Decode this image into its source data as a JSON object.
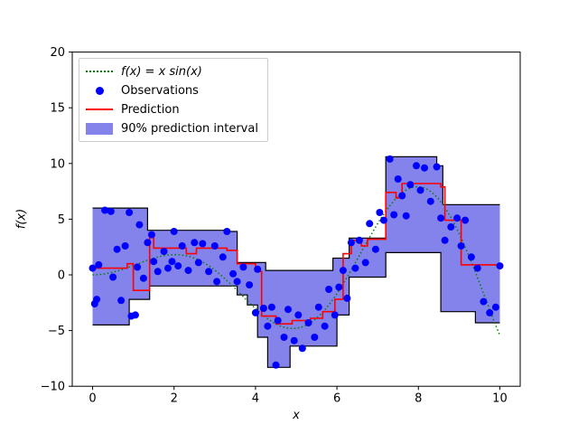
{
  "figure": {
    "background": "#ffffff"
  },
  "legend": {
    "items": [
      {
        "label": "f(x) = x sin(x)",
        "type": "dotted-line",
        "color": "#008000"
      },
      {
        "label": "Observations",
        "type": "dot",
        "color": "#0000ff"
      },
      {
        "label": "Prediction",
        "type": "line",
        "color": "#ff0000"
      },
      {
        "label": "90% prediction interval",
        "type": "patch",
        "color": "#4040e0"
      }
    ]
  },
  "chart_data": {
    "type": "line",
    "title": "",
    "xlabel": "x",
    "ylabel": "f(x)",
    "xlim": [
      -0.5,
      10.5
    ],
    "ylim": [
      -10,
      20
    ],
    "xticks": [
      0,
      2,
      4,
      6,
      8,
      10
    ],
    "yticks": [
      -10,
      -5,
      0,
      5,
      10,
      15,
      20
    ],
    "grid": false,
    "legend_position": "upper left",
    "true_function": {
      "label": "f(x) = x sin(x)",
      "formula": "x*sin(x)",
      "range": [
        0,
        10
      ],
      "color": "#008000",
      "style": "dotted"
    },
    "observations": {
      "label": "Observations",
      "color": "#0000ff",
      "points": [
        [
          0.0,
          0.6
        ],
        [
          0.05,
          -2.6
        ],
        [
          0.1,
          -2.2
        ],
        [
          0.15,
          0.9
        ],
        [
          0.3,
          5.8
        ],
        [
          0.45,
          5.7
        ],
        [
          0.5,
          -0.2
        ],
        [
          0.6,
          2.3
        ],
        [
          0.7,
          -2.3
        ],
        [
          0.8,
          2.6
        ],
        [
          0.9,
          5.6
        ],
        [
          0.95,
          -3.7
        ],
        [
          1.05,
          -3.6
        ],
        [
          1.1,
          0.7
        ],
        [
          1.15,
          4.5
        ],
        [
          1.25,
          -0.3
        ],
        [
          1.35,
          2.9
        ],
        [
          1.45,
          3.6
        ],
        [
          1.5,
          1.2
        ],
        [
          1.6,
          0.3
        ],
        [
          1.75,
          2.1
        ],
        [
          1.85,
          0.6
        ],
        [
          1.95,
          1.2
        ],
        [
          2.0,
          3.9
        ],
        [
          2.1,
          0.8
        ],
        [
          2.2,
          2.6
        ],
        [
          2.35,
          0.4
        ],
        [
          2.5,
          2.9
        ],
        [
          2.6,
          1.1
        ],
        [
          2.7,
          2.8
        ],
        [
          2.85,
          0.3
        ],
        [
          3.0,
          2.6
        ],
        [
          3.05,
          -0.6
        ],
        [
          3.2,
          1.6
        ],
        [
          3.3,
          3.9
        ],
        [
          3.45,
          0.1
        ],
        [
          3.55,
          -0.6
        ],
        [
          3.7,
          0.7
        ],
        [
          3.85,
          -0.9
        ],
        [
          4.0,
          -3.4
        ],
        [
          4.05,
          0.5
        ],
        [
          4.2,
          -3.0
        ],
        [
          4.3,
          -4.6
        ],
        [
          4.4,
          -2.9
        ],
        [
          4.5,
          -8.1
        ],
        [
          4.55,
          -4.1
        ],
        [
          4.7,
          -5.6
        ],
        [
          4.8,
          -3.1
        ],
        [
          4.95,
          -5.9
        ],
        [
          5.05,
          -3.6
        ],
        [
          5.15,
          -6.6
        ],
        [
          5.3,
          -4.3
        ],
        [
          5.45,
          -5.6
        ],
        [
          5.55,
          -2.9
        ],
        [
          5.7,
          -4.6
        ],
        [
          5.8,
          -1.3
        ],
        [
          5.95,
          -3.6
        ],
        [
          6.05,
          -1.1
        ],
        [
          6.15,
          0.4
        ],
        [
          6.25,
          -2.1
        ],
        [
          6.35,
          2.9
        ],
        [
          6.45,
          0.6
        ],
        [
          6.55,
          3.1
        ],
        [
          6.7,
          1.1
        ],
        [
          6.8,
          4.6
        ],
        [
          6.95,
          2.3
        ],
        [
          7.05,
          5.6
        ],
        [
          7.15,
          4.9
        ],
        [
          7.3,
          10.4
        ],
        [
          7.4,
          5.4
        ],
        [
          7.5,
          8.6
        ],
        [
          7.6,
          7.1
        ],
        [
          7.7,
          5.3
        ],
        [
          7.8,
          8.1
        ],
        [
          7.95,
          9.8
        ],
        [
          8.05,
          7.6
        ],
        [
          8.15,
          9.6
        ],
        [
          8.3,
          6.6
        ],
        [
          8.45,
          9.7
        ],
        [
          8.55,
          5.1
        ],
        [
          8.65,
          3.1
        ],
        [
          8.8,
          4.3
        ],
        [
          8.95,
          5.1
        ],
        [
          9.05,
          2.6
        ],
        [
          9.15,
          4.9
        ],
        [
          9.3,
          1.6
        ],
        [
          9.45,
          0.6
        ],
        [
          9.6,
          -2.4
        ],
        [
          9.75,
          -3.4
        ],
        [
          9.9,
          -2.9
        ],
        [
          10.0,
          0.8
        ]
      ]
    },
    "prediction": {
      "label": "Prediction",
      "color": "#ff0000",
      "segments": [
        [
          0,
          0.85,
          0.6
        ],
        [
          0.85,
          1.0,
          1.0
        ],
        [
          1.0,
          1.4,
          -1.4
        ],
        [
          1.4,
          1.5,
          3.7
        ],
        [
          1.5,
          2.3,
          2.4
        ],
        [
          2.3,
          2.55,
          1.9
        ],
        [
          2.55,
          3.3,
          2.4
        ],
        [
          3.3,
          3.55,
          2.2
        ],
        [
          3.55,
          4.0,
          1.0
        ],
        [
          4.0,
          4.15,
          0.3
        ],
        [
          4.15,
          4.5,
          -3.7
        ],
        [
          4.5,
          4.9,
          -4.4
        ],
        [
          4.9,
          5.35,
          -4.1
        ],
        [
          5.35,
          5.65,
          -3.9
        ],
        [
          5.65,
          5.95,
          -3.3
        ],
        [
          5.95,
          6.15,
          -2.2
        ],
        [
          6.15,
          6.35,
          1.9
        ],
        [
          6.35,
          6.6,
          3.1
        ],
        [
          6.6,
          6.75,
          2.6
        ],
        [
          6.75,
          7.2,
          3.2
        ],
        [
          7.2,
          7.45,
          7.4
        ],
        [
          7.45,
          7.6,
          6.9
        ],
        [
          7.6,
          8.55,
          8.2
        ],
        [
          8.55,
          8.65,
          7.9
        ],
        [
          8.65,
          9.05,
          4.9
        ],
        [
          9.05,
          10,
          0.9
        ]
      ]
    },
    "interval": {
      "label": "90% prediction interval",
      "fill": "#4040e0",
      "opacity": 0.65,
      "edge_color": "#000000",
      "upper_segments": [
        [
          0,
          1.35,
          6.0
        ],
        [
          1.35,
          3.3,
          4.0
        ],
        [
          3.3,
          3.55,
          3.9
        ],
        [
          3.55,
          4.25,
          1.1
        ],
        [
          4.25,
          5.9,
          0.4
        ],
        [
          5.9,
          6.3,
          1.5
        ],
        [
          6.3,
          7.2,
          3.3
        ],
        [
          7.2,
          8.45,
          10.6
        ],
        [
          8.45,
          8.6,
          9.8
        ],
        [
          8.6,
          10,
          6.3
        ]
      ],
      "lower_segments": [
        [
          0,
          0.9,
          -4.5
        ],
        [
          0.9,
          1.4,
          -2.2
        ],
        [
          1.4,
          3.55,
          -1.0
        ],
        [
          3.55,
          3.8,
          -1.8
        ],
        [
          3.8,
          4.05,
          -2.7
        ],
        [
          4.05,
          4.3,
          -5.6
        ],
        [
          4.3,
          4.85,
          -8.3
        ],
        [
          4.85,
          6.0,
          -6.4
        ],
        [
          6.0,
          6.3,
          -3.6
        ],
        [
          6.3,
          7.2,
          -0.2
        ],
        [
          7.2,
          8.55,
          2.0
        ],
        [
          8.55,
          9.4,
          -3.3
        ],
        [
          9.4,
          10,
          -4.3
        ]
      ]
    }
  }
}
